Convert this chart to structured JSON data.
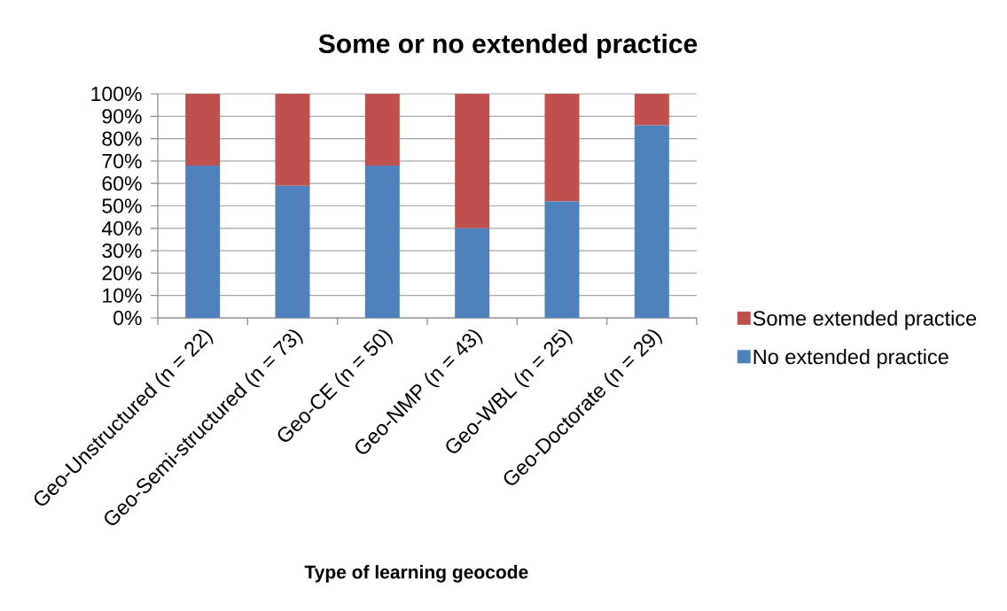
{
  "chart_data": {
    "type": "bar",
    "title": "Some or no extended practice",
    "xlabel": "Type of learning geocode",
    "categories": [
      "Geo-Unstructured (n = 22)",
      "Geo-Semi-structured (n = 73)",
      "Geo-CE (n = 50)",
      "Geo-NMP (n = 43)",
      "Geo-WBL (n = 25)",
      "Geo-Doctorate (n = 29)"
    ],
    "series": [
      {
        "name": "No extended practice",
        "color": "#4f81bd",
        "values": [
          68,
          59,
          68,
          40,
          52,
          86
        ]
      },
      {
        "name": "Some extended practice",
        "color": "#c0504d",
        "values": [
          32,
          41,
          32,
          60,
          48,
          14
        ]
      }
    ],
    "stacked": true,
    "ylim": [
      0,
      100
    ],
    "yticks": [
      {
        "value": 0,
        "label": "0%"
      },
      {
        "value": 10,
        "label": "10%"
      },
      {
        "value": 20,
        "label": "20%"
      },
      {
        "value": 30,
        "label": "30%"
      },
      {
        "value": 40,
        "label": "40%"
      },
      {
        "value": 50,
        "label": "50%"
      },
      {
        "value": 60,
        "label": "60%"
      },
      {
        "value": 70,
        "label": "70%"
      },
      {
        "value": 80,
        "label": "80%"
      },
      {
        "value": 90,
        "label": "90%"
      },
      {
        "value": 100,
        "label": "100%"
      }
    ],
    "grid": "y",
    "legend": "right"
  }
}
